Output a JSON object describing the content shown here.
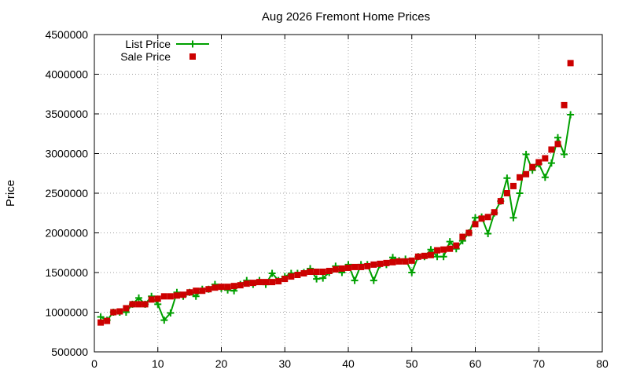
{
  "chart_data": {
    "type": "line",
    "title": "Aug 2026 Fremont Home Prices",
    "xlabel": "",
    "ylabel": "Price",
    "xlim": [
      0,
      80
    ],
    "ylim": [
      500000,
      4500000
    ],
    "xticks": [
      0,
      10,
      20,
      30,
      40,
      50,
      60,
      70,
      80
    ],
    "yticks": [
      500000,
      1000000,
      1500000,
      2000000,
      2500000,
      3000000,
      3500000,
      4000000,
      4500000
    ],
    "grid": true,
    "legend_position": "top-left",
    "series": [
      {
        "name": "List Price",
        "style": "line-with-plus-markers",
        "color": "#00a000",
        "x": [
          1,
          2,
          3,
          4,
          5,
          6,
          7,
          8,
          9,
          10,
          11,
          12,
          13,
          14,
          15,
          16,
          17,
          18,
          19,
          20,
          21,
          22,
          23,
          24,
          25,
          26,
          27,
          28,
          29,
          30,
          31,
          32,
          33,
          34,
          35,
          36,
          37,
          38,
          39,
          40,
          41,
          42,
          43,
          44,
          45,
          46,
          47,
          48,
          49,
          50,
          51,
          52,
          53,
          54,
          55,
          56,
          57,
          58,
          59,
          60,
          61,
          62,
          63,
          64,
          65,
          66,
          67,
          68,
          69,
          70,
          71,
          72,
          73,
          74,
          75
        ],
        "y": [
          940000,
          900000,
          1000000,
          1000000,
          1000000,
          1100000,
          1180000,
          1100000,
          1200000,
          1100000,
          900000,
          990000,
          1250000,
          1200000,
          1250000,
          1200000,
          1290000,
          1290000,
          1350000,
          1300000,
          1280000,
          1270000,
          1350000,
          1400000,
          1350000,
          1400000,
          1350000,
          1490000,
          1400000,
          1450000,
          1490000,
          1490000,
          1500000,
          1550000,
          1420000,
          1430000,
          1500000,
          1580000,
          1500000,
          1600000,
          1400000,
          1600000,
          1600000,
          1400000,
          1600000,
          1600000,
          1690000,
          1650000,
          1670000,
          1500000,
          1700000,
          1700000,
          1790000,
          1700000,
          1700000,
          1890000,
          1800000,
          1900000,
          2000000,
          2190000,
          2200000,
          1990000,
          2250000,
          2400000,
          2690000,
          2190000,
          2500000,
          2990000,
          2790000,
          2870000,
          2700000,
          2880000,
          3200000,
          2990000,
          3490000
        ]
      },
      {
        "name": "Sale Price",
        "style": "square-markers",
        "color": "#cc0000",
        "x": [
          1,
          2,
          3,
          4,
          5,
          6,
          7,
          8,
          9,
          10,
          11,
          12,
          13,
          14,
          15,
          16,
          17,
          18,
          19,
          20,
          21,
          22,
          23,
          24,
          25,
          26,
          27,
          28,
          29,
          30,
          31,
          32,
          33,
          34,
          35,
          36,
          37,
          38,
          39,
          40,
          41,
          42,
          43,
          44,
          45,
          46,
          47,
          48,
          49,
          50,
          51,
          52,
          53,
          54,
          55,
          56,
          57,
          58,
          59,
          60,
          61,
          62,
          63,
          64,
          65,
          66,
          67,
          68,
          69,
          70,
          71,
          72,
          73,
          74,
          75
        ],
        "y": [
          870000,
          890000,
          1000000,
          1010000,
          1050000,
          1100000,
          1100000,
          1100000,
          1160000,
          1170000,
          1200000,
          1200000,
          1210000,
          1220000,
          1250000,
          1270000,
          1270000,
          1290000,
          1310000,
          1320000,
          1320000,
          1330000,
          1340000,
          1360000,
          1370000,
          1380000,
          1380000,
          1380000,
          1390000,
          1420000,
          1450000,
          1470000,
          1490000,
          1510000,
          1510000,
          1510000,
          1520000,
          1540000,
          1550000,
          1560000,
          1570000,
          1570000,
          1580000,
          1600000,
          1610000,
          1620000,
          1630000,
          1640000,
          1640000,
          1650000,
          1700000,
          1710000,
          1720000,
          1780000,
          1790000,
          1800000,
          1840000,
          1950000,
          2000000,
          2110000,
          2180000,
          2200000,
          2260000,
          2400000,
          2500000,
          2590000,
          2700000,
          2740000,
          2830000,
          2890000,
          2940000,
          3050000,
          3120000,
          3610000,
          4140000
        ]
      }
    ]
  }
}
